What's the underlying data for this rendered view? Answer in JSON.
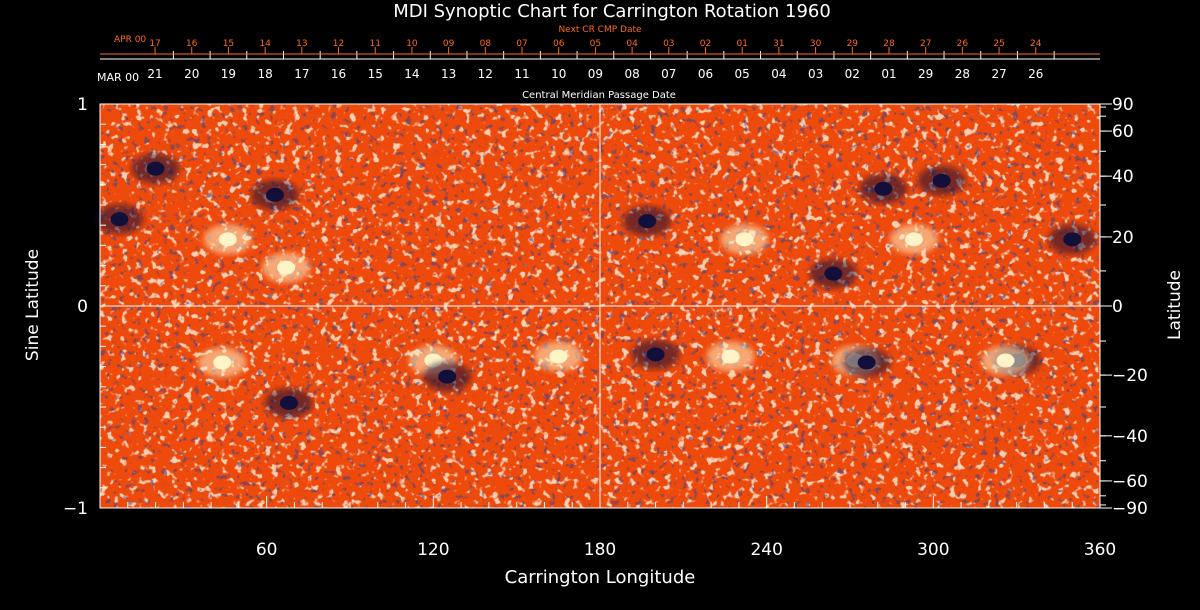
{
  "chart_data": {
    "type": "heatmap",
    "title": "MDI Synoptic Chart for Carrington Rotation 1960",
    "xlabel": "Carrington Longitude",
    "ylabel_left": "Sine Latitude",
    "ylabel_right": "Latitude",
    "xlim": [
      0,
      360
    ],
    "ylim": [
      -1,
      1
    ],
    "x_ticks": [
      60,
      120,
      180,
      240,
      300,
      360
    ],
    "y_ticks_left": [
      {
        "value": 1,
        "label": "1"
      },
      {
        "value": 0,
        "label": "0"
      },
      {
        "value": -1,
        "label": "−1"
      }
    ],
    "y_ticks_right": [
      {
        "lat": 90,
        "label": "90"
      },
      {
        "lat": 60,
        "label": "60"
      },
      {
        "lat": 40,
        "label": "40"
      },
      {
        "lat": 20,
        "label": "20"
      },
      {
        "lat": 0,
        "label": "0"
      },
      {
        "lat": -20,
        "label": "−20"
      },
      {
        "lat": -40,
        "label": "−40"
      },
      {
        "lat": -60,
        "label": "−60"
      },
      {
        "lat": -90,
        "label": "−90"
      }
    ],
    "grid_lines": {
      "vertical_at_longitude": 180,
      "horizontal_at_sine_latitude": 0
    },
    "cmp_axis": {
      "title": "Central Meridian Passage Date",
      "month_label": "MAR 00",
      "labels": [
        "21",
        "20",
        "19",
        "18",
        "17",
        "16",
        "15",
        "14",
        "13",
        "12",
        "11",
        "10",
        "09",
        "08",
        "07",
        "06",
        "05",
        "04",
        "03",
        "02",
        "01",
        "29",
        "28",
        "27",
        "26"
      ]
    },
    "next_cr_axis": {
      "title": "Next CR CMP Date",
      "month_label": "APR 00",
      "labels": [
        "17",
        "16",
        "15",
        "14",
        "13",
        "12",
        "11",
        "10",
        "09",
        "08",
        "07",
        "06",
        "05",
        "04",
        "03",
        "02",
        "01",
        "31",
        "30",
        "29",
        "28",
        "27",
        "26",
        "25",
        "24"
      ]
    },
    "colors": {
      "background": "#000000",
      "field_neutral": "#ee4a0c",
      "positive_polarity": "#fff4c8",
      "negative_polarity": "#12103a",
      "axes": "#ffffff",
      "next_cr_axis": "#ff6a1a"
    },
    "active_regions": [
      {
        "lon": 46,
        "sinlat": 0.33,
        "polarity": "positive"
      },
      {
        "lon": 67,
        "sinlat": 0.19,
        "polarity": "positive"
      },
      {
        "lon": 63,
        "sinlat": 0.55,
        "polarity": "negative"
      },
      {
        "lon": 7,
        "sinlat": 0.43,
        "polarity": "negative"
      },
      {
        "lon": 20,
        "sinlat": 0.68,
        "polarity": "negative"
      },
      {
        "lon": 44,
        "sinlat": -0.28,
        "polarity": "positive"
      },
      {
        "lon": 68,
        "sinlat": -0.48,
        "polarity": "negative"
      },
      {
        "lon": 120,
        "sinlat": -0.27,
        "polarity": "positive"
      },
      {
        "lon": 125,
        "sinlat": -0.35,
        "polarity": "negative"
      },
      {
        "lon": 165,
        "sinlat": -0.25,
        "polarity": "positive"
      },
      {
        "lon": 197,
        "sinlat": 0.42,
        "polarity": "negative"
      },
      {
        "lon": 200,
        "sinlat": -0.24,
        "polarity": "negative"
      },
      {
        "lon": 227,
        "sinlat": -0.25,
        "polarity": "positive"
      },
      {
        "lon": 232,
        "sinlat": 0.33,
        "polarity": "positive"
      },
      {
        "lon": 264,
        "sinlat": 0.16,
        "polarity": "negative"
      },
      {
        "lon": 272,
        "sinlat": -0.27,
        "polarity": "positive"
      },
      {
        "lon": 276,
        "sinlat": -0.28,
        "polarity": "negative"
      },
      {
        "lon": 282,
        "sinlat": 0.58,
        "polarity": "negative"
      },
      {
        "lon": 293,
        "sinlat": 0.33,
        "polarity": "positive"
      },
      {
        "lon": 303,
        "sinlat": 0.62,
        "polarity": "negative"
      },
      {
        "lon": 330,
        "sinlat": -0.27,
        "polarity": "negative"
      },
      {
        "lon": 326,
        "sinlat": -0.27,
        "polarity": "positive"
      },
      {
        "lon": 350,
        "sinlat": 0.33,
        "polarity": "negative"
      }
    ]
  }
}
